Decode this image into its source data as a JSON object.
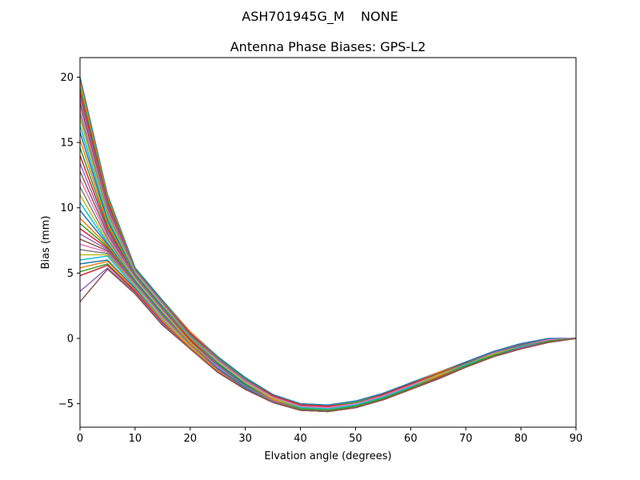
{
  "chart_data": {
    "type": "line",
    "suptitle": "ASH701945G_M    NONE",
    "title": "Antenna Phase Biases: GPS-L2",
    "xlabel": "Elvation angle (degrees)",
    "ylabel": "Bias (mm)",
    "xlim": [
      0,
      90
    ],
    "ylim": [
      -6.8,
      21.5
    ],
    "xticks": [
      0,
      10,
      20,
      30,
      40,
      50,
      60,
      70,
      80,
      90
    ],
    "yticks": [
      -5,
      0,
      5,
      10,
      15,
      20
    ],
    "grid": false,
    "x": [
      0,
      5,
      10,
      15,
      20,
      25,
      30,
      35,
      40,
      45,
      50,
      55,
      60,
      65,
      70,
      75,
      80,
      85,
      90
    ],
    "colors": [
      "#1f77b4",
      "#ff7f0e",
      "#2ca02c",
      "#d62728",
      "#9467bd",
      "#8c564b",
      "#e377c2",
      "#7f7f7f",
      "#bcbd22",
      "#17becf"
    ],
    "series": [
      {
        "values": [
          20.0,
          11.0,
          5.4,
          2.9,
          0.5,
          -1.4,
          -3.0,
          -4.3,
          -5.0,
          -5.1,
          -4.8,
          -4.2,
          -3.4,
          -2.6,
          -1.8,
          -1.0,
          -0.4,
          0.0,
          0.0
        ]
      },
      {
        "values": [
          19.6,
          10.8,
          5.3,
          2.8,
          0.5,
          -1.5,
          -3.1,
          -4.4,
          -5.1,
          -5.2,
          -4.9,
          -4.3,
          -3.5,
          -2.6,
          -1.9,
          -1.1,
          -0.5,
          -0.1,
          0.0
        ]
      },
      {
        "values": [
          19.2,
          10.6,
          5.3,
          2.8,
          0.4,
          -1.5,
          -3.1,
          -4.4,
          -5.1,
          -5.2,
          -4.9,
          -4.3,
          -3.5,
          -2.7,
          -1.9,
          -1.1,
          -0.5,
          -0.1,
          0.0
        ]
      },
      {
        "values": [
          18.8,
          10.4,
          5.2,
          2.7,
          0.4,
          -1.6,
          -3.2,
          -4.4,
          -5.1,
          -5.2,
          -5.0,
          -4.3,
          -3.5,
          -2.7,
          -1.9,
          -1.1,
          -0.5,
          -0.1,
          0.0
        ]
      },
      {
        "values": [
          18.4,
          10.2,
          5.2,
          2.7,
          0.3,
          -1.6,
          -3.2,
          -4.5,
          -5.2,
          -5.3,
          -5.0,
          -4.4,
          -3.6,
          -2.7,
          -1.9,
          -1.1,
          -0.5,
          -0.1,
          0.0
        ]
      },
      {
        "values": [
          18.0,
          10.0,
          5.1,
          2.6,
          0.3,
          -1.7,
          -3.3,
          -4.5,
          -5.2,
          -5.3,
          -5.0,
          -4.4,
          -3.6,
          -2.7,
          -1.9,
          -1.2,
          -0.5,
          -0.1,
          0.0
        ]
      },
      {
        "values": [
          17.6,
          9.8,
          5.1,
          2.6,
          0.2,
          -1.7,
          -3.3,
          -4.5,
          -5.2,
          -5.3,
          -5.0,
          -4.4,
          -3.6,
          -2.8,
          -2.0,
          -1.2,
          -0.6,
          -0.1,
          0.0
        ]
      },
      {
        "values": [
          17.2,
          9.6,
          5.0,
          2.5,
          0.2,
          -1.8,
          -3.4,
          -4.6,
          -5.3,
          -5.4,
          -5.1,
          -4.5,
          -3.7,
          -2.8,
          -2.0,
          -1.2,
          -0.6,
          -0.2,
          0.0
        ]
      },
      {
        "values": [
          16.8,
          9.4,
          5.0,
          2.5,
          0.1,
          -1.8,
          -3.4,
          -4.6,
          -5.3,
          -5.4,
          -5.1,
          -4.5,
          -3.7,
          -2.8,
          -2.0,
          -1.2,
          -0.6,
          -0.2,
          0.0
        ]
      },
      {
        "values": [
          16.3,
          9.2,
          4.9,
          2.4,
          0.1,
          -1.9,
          -3.5,
          -4.7,
          -5.3,
          -5.4,
          -5.1,
          -4.5,
          -3.7,
          -2.9,
          -2.0,
          -1.3,
          -0.6,
          -0.2,
          0.0
        ]
      },
      {
        "values": [
          15.8,
          9.0,
          4.9,
          2.4,
          0.0,
          -1.9,
          -3.5,
          -4.7,
          -5.4,
          -5.5,
          -5.2,
          -4.6,
          -3.8,
          -2.9,
          -2.1,
          -1.3,
          -0.7,
          -0.2,
          0.0
        ]
      },
      {
        "values": [
          15.2,
          8.8,
          4.8,
          2.3,
          0.0,
          -2.0,
          -3.6,
          -4.7,
          -5.4,
          -5.5,
          -5.2,
          -4.6,
          -3.8,
          -2.9,
          -2.1,
          -1.3,
          -0.7,
          -0.2,
          0.0
        ]
      },
      {
        "values": [
          14.6,
          8.6,
          4.8,
          2.3,
          -0.1,
          -2.0,
          -3.6,
          -4.8,
          -5.4,
          -5.5,
          -5.2,
          -4.6,
          -3.8,
          -3.0,
          -2.1,
          -1.3,
          -0.7,
          -0.2,
          0.0
        ]
      },
      {
        "values": [
          14.0,
          8.4,
          4.7,
          2.2,
          -0.1,
          -2.1,
          -3.7,
          -4.8,
          -5.5,
          -5.6,
          -5.3,
          -4.7,
          -3.9,
          -3.0,
          -2.2,
          -1.4,
          -0.7,
          -0.3,
          0.0
        ]
      },
      {
        "values": [
          13.4,
          8.2,
          4.7,
          2.2,
          -0.2,
          -2.1,
          -3.7,
          -4.8,
          -5.5,
          -5.6,
          -5.3,
          -4.7,
          -3.9,
          -3.0,
          -2.2,
          -1.4,
          -0.7,
          -0.3,
          0.0
        ]
      },
      {
        "values": [
          12.8,
          8.0,
          4.6,
          2.1,
          -0.2,
          -2.2,
          -3.8,
          -4.9,
          -5.5,
          -5.6,
          -5.3,
          -4.7,
          -3.9,
          -3.0,
          -2.2,
          -1.4,
          -0.8,
          -0.3,
          0.0
        ]
      },
      {
        "values": [
          12.2,
          7.8,
          4.6,
          2.1,
          -0.3,
          -2.2,
          -3.8,
          -4.9,
          -5.5,
          -5.6,
          -5.3,
          -4.7,
          -3.9,
          -3.1,
          -2.2,
          -1.4,
          -0.8,
          -0.3,
          0.0
        ]
      },
      {
        "values": [
          11.6,
          7.6,
          4.5,
          2.0,
          -0.3,
          -2.3,
          -3.8,
          -4.9,
          -5.5,
          -5.6,
          -5.3,
          -4.7,
          -3.9,
          -3.1,
          -2.2,
          -1.4,
          -0.8,
          -0.3,
          0.0
        ]
      },
      {
        "values": [
          11.0,
          7.4,
          4.5,
          2.0,
          -0.3,
          -2.3,
          -3.8,
          -4.9,
          -5.5,
          -5.6,
          -5.3,
          -4.7,
          -3.9,
          -3.1,
          -2.2,
          -1.4,
          -0.8,
          -0.3,
          0.0
        ]
      },
      {
        "values": [
          10.4,
          7.3,
          4.4,
          1.9,
          -0.4,
          -2.3,
          -3.8,
          -4.9,
          -5.5,
          -5.6,
          -5.3,
          -4.7,
          -3.9,
          -3.1,
          -2.2,
          -1.4,
          -0.8,
          -0.3,
          0.0
        ]
      },
      {
        "values": [
          9.8,
          7.2,
          4.4,
          1.9,
          -0.4,
          -2.3,
          -3.8,
          -4.9,
          -5.5,
          -5.6,
          -5.3,
          -4.7,
          -3.9,
          -3.1,
          -2.2,
          -1.4,
          -0.8,
          -0.3,
          0.0
        ]
      },
      {
        "values": [
          9.2,
          7.1,
          4.3,
          1.8,
          -0.4,
          -2.4,
          -3.9,
          -4.9,
          -5.5,
          -5.6,
          -5.3,
          -4.7,
          -3.9,
          -3.1,
          -2.2,
          -1.4,
          -0.8,
          -0.3,
          0.0
        ]
      },
      {
        "values": [
          8.8,
          7.0,
          4.3,
          1.8,
          -0.5,
          -2.4,
          -3.9,
          -4.9,
          -5.5,
          -5.6,
          -5.3,
          -4.7,
          -3.9,
          -3.1,
          -2.2,
          -1.4,
          -0.8,
          -0.3,
          0.0
        ]
      },
      {
        "values": [
          8.4,
          6.9,
          4.2,
          1.7,
          -0.5,
          -2.4,
          -3.9,
          -4.9,
          -5.5,
          -5.6,
          -5.3,
          -4.7,
          -3.9,
          -3.1,
          -2.2,
          -1.4,
          -0.8,
          -0.3,
          0.0
        ]
      },
      {
        "values": [
          8.0,
          6.8,
          4.2,
          1.7,
          -0.5,
          -2.4,
          -3.9,
          -4.9,
          -5.5,
          -5.6,
          -5.3,
          -4.7,
          -3.9,
          -3.1,
          -2.2,
          -1.4,
          -0.8,
          -0.3,
          0.0
        ]
      },
      {
        "values": [
          7.6,
          6.7,
          4.1,
          1.6,
          -0.6,
          -2.5,
          -3.9,
          -4.9,
          -5.5,
          -5.6,
          -5.3,
          -4.7,
          -3.9,
          -3.1,
          -2.2,
          -1.4,
          -0.8,
          -0.3,
          0.0
        ]
      },
      {
        "values": [
          7.2,
          6.6,
          4.1,
          1.6,
          -0.6,
          -2.5,
          -3.9,
          -4.9,
          -5.5,
          -5.6,
          -5.3,
          -4.7,
          -3.9,
          -3.1,
          -2.2,
          -1.4,
          -0.8,
          -0.3,
          0.0
        ]
      },
      {
        "values": [
          6.8,
          6.5,
          4.0,
          1.5,
          -0.6,
          -2.5,
          -3.9,
          -4.9,
          -5.5,
          -5.6,
          -5.3,
          -4.7,
          -3.9,
          -3.1,
          -2.2,
          -1.4,
          -0.8,
          -0.3,
          0.0
        ]
      },
      {
        "values": [
          6.4,
          6.4,
          4.0,
          1.5,
          -0.6,
          -2.5,
          -3.9,
          -4.9,
          -5.5,
          -5.6,
          -5.3,
          -4.7,
          -3.9,
          -3.1,
          -2.2,
          -1.4,
          -0.8,
          -0.3,
          0.0
        ]
      },
      {
        "values": [
          6.0,
          6.3,
          3.9,
          1.4,
          -0.7,
          -2.5,
          -3.9,
          -4.9,
          -5.5,
          -5.6,
          -5.3,
          -4.7,
          -3.9,
          -3.1,
          -2.2,
          -1.4,
          -0.8,
          -0.3,
          0.0
        ]
      },
      {
        "values": [
          5.7,
          6.0,
          3.8,
          1.3,
          -0.7,
          -2.5,
          -3.9,
          -4.9,
          -5.5,
          -5.6,
          -5.3,
          -4.7,
          -3.9,
          -3.1,
          -2.2,
          -1.4,
          -0.8,
          -0.3,
          0.0
        ]
      },
      {
        "values": [
          5.4,
          5.9,
          3.7,
          1.3,
          -0.7,
          -2.5,
          -3.9,
          -4.9,
          -5.5,
          -5.6,
          -5.3,
          -4.7,
          -3.9,
          -3.1,
          -2.2,
          -1.4,
          -0.8,
          -0.3,
          0.0
        ]
      },
      {
        "values": [
          5.1,
          5.7,
          3.6,
          1.2,
          -0.8,
          -2.6,
          -3.9,
          -4.9,
          -5.5,
          -5.6,
          -5.3,
          -4.7,
          -3.9,
          -3.1,
          -2.2,
          -1.4,
          -0.8,
          -0.3,
          0.0
        ]
      },
      {
        "values": [
          4.8,
          5.6,
          3.6,
          1.2,
          -0.8,
          -2.6,
          -3.9,
          -4.9,
          -5.5,
          -5.6,
          -5.3,
          -4.7,
          -3.9,
          -3.1,
          -2.2,
          -1.4,
          -0.8,
          -0.3,
          0.0
        ]
      },
      {
        "values": [
          3.6,
          5.4,
          3.5,
          1.1,
          -0.8,
          -2.6,
          -3.9,
          -4.9,
          -5.5,
          -5.6,
          -5.3,
          -4.7,
          -3.9,
          -3.1,
          -2.2,
          -1.4,
          -0.8,
          -0.3,
          0.0
        ]
      },
      {
        "values": [
          2.8,
          5.3,
          3.4,
          1.0,
          -0.8,
          -2.6,
          -3.9,
          -4.9,
          -5.5,
          -5.6,
          -5.3,
          -4.7,
          -3.9,
          -3.1,
          -2.2,
          -1.4,
          -0.8,
          -0.3,
          0.0
        ]
      }
    ]
  }
}
